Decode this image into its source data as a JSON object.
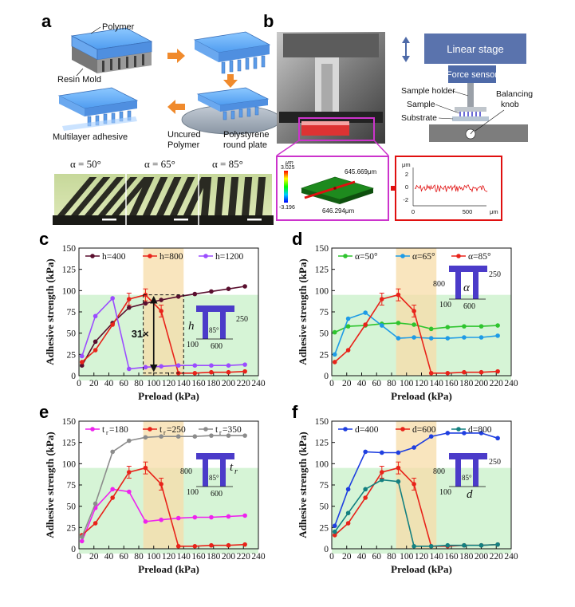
{
  "panel_a": {
    "label": "a",
    "labels": {
      "polymer": "Polymer",
      "resin_mold": "Resin Mold",
      "multilayer_adhesive": "Multilayer adhesive",
      "uncured_polymer_1": "Uncured",
      "uncured_polymer_2": "Polymer",
      "polystyrene_1": "Polystyrene",
      "polystyrene_2": "round plate"
    },
    "micrographs": [
      "α = 50°",
      "α = 65°",
      "α = 85°"
    ]
  },
  "panel_b": {
    "label": "b",
    "schematic": {
      "linear_stage": "Linear stage",
      "force_sensor": "Force sensor",
      "sample_holder": "Sample holder",
      "sample": "Sample",
      "substrate": "Substrate",
      "balancing_1": "Balancing",
      "balancing_2": "knob"
    },
    "surface_map": {
      "unit": "μm",
      "max": "3.025",
      "min": "-3.196",
      "width": "645.669μm",
      "length": "646.294μm"
    },
    "profile": {
      "unit": "μm",
      "yticks": [
        "2",
        "0",
        "-2"
      ],
      "xticks": [
        "0",
        "500"
      ],
      "xunit": "μm"
    }
  },
  "panels": [
    {
      "label": "c",
      "legend": [
        "h=400",
        "h=800",
        "h=1200"
      ],
      "fold_label": "31×",
      "inset": {
        "var": "h",
        "angle": "85°",
        "dim_top": "250",
        "dim_left": "100",
        "dim_bottom": "600"
      }
    },
    {
      "label": "d",
      "legend": [
        "α=50°",
        "α=65°",
        "α=85°"
      ],
      "inset": {
        "var": "α",
        "dim_top": "250",
        "dim_side": "800",
        "dim_left": "100",
        "dim_bottom": "600"
      }
    },
    {
      "label": "e",
      "legend": [
        "t",
        "t",
        "t"
      ],
      "legend_sub": [
        "r",
        "r",
        "r"
      ],
      "legend_val": [
        "=180",
        "=250",
        "=350"
      ],
      "inset": {
        "var": "t",
        "var_sub": "r",
        "angle": "85°",
        "dim_side": "800",
        "dim_left": "100",
        "dim_bottom": "600"
      }
    },
    {
      "label": "f",
      "legend": [
        "d=400",
        "d=600",
        "d=800"
      ],
      "inset": {
        "var": "d",
        "angle": "85°",
        "dim_top": "250",
        "dim_side": "800",
        "dim_left": "100"
      }
    }
  ],
  "chart_data": [
    {
      "type": "line",
      "panel": "c",
      "xlabel": "Preload (kPa)",
      "ylabel": "Adhesive strength (kPa)",
      "xlim": [
        0,
        240
      ],
      "ylim": [
        0,
        150
      ],
      "xticks": [
        0,
        20,
        40,
        60,
        80,
        100,
        120,
        140,
        160,
        180,
        200,
        220,
        240
      ],
      "yticks": [
        0,
        25,
        50,
        75,
        100,
        125,
        150
      ],
      "series": [
        {
          "name": "h=400",
          "color": "#5a0f2e",
          "x": [
            4,
            22,
            45,
            67,
            89,
            110,
            133,
            155,
            177,
            200,
            222
          ],
          "y": [
            12,
            40,
            62,
            80,
            85,
            89,
            93,
            96,
            99,
            102,
            105
          ]
        },
        {
          "name": "h=800",
          "color": "#e8231a",
          "x": [
            4,
            22,
            45,
            67,
            89,
            110,
            133,
            155,
            177,
            200,
            222
          ],
          "y": [
            16,
            30,
            60,
            90,
            95,
            76,
            3,
            3,
            4,
            4,
            5
          ]
        },
        {
          "name": "h=1200",
          "color": "#9b4dff",
          "x": [
            4,
            22,
            45,
            67,
            89,
            110,
            133,
            155,
            177,
            200,
            222
          ],
          "y": [
            23,
            70,
            91,
            8,
            10,
            11,
            12,
            12,
            12,
            12,
            13
          ]
        }
      ]
    },
    {
      "type": "line",
      "panel": "d",
      "xlabel": "Preload (kPa)",
      "ylabel": "Adhesive strength (kPa)",
      "xlim": [
        0,
        240
      ],
      "ylim": [
        0,
        150
      ],
      "xticks": [
        0,
        20,
        40,
        60,
        80,
        100,
        120,
        140,
        160,
        180,
        200,
        220,
        240
      ],
      "yticks": [
        0,
        25,
        50,
        75,
        100,
        125,
        150
      ],
      "series": [
        {
          "name": "α=50°",
          "color": "#2ec42e",
          "x": [
            4,
            22,
            45,
            67,
            89,
            110,
            133,
            155,
            177,
            200,
            222
          ],
          "y": [
            51,
            58,
            59,
            61,
            62,
            60,
            55,
            57,
            58,
            58,
            59
          ]
        },
        {
          "name": "α=65°",
          "color": "#1e9be6",
          "x": [
            4,
            22,
            45,
            67,
            89,
            110,
            133,
            155,
            177,
            200,
            222
          ],
          "y": [
            25,
            67,
            74,
            59,
            44,
            45,
            44,
            44,
            45,
            45,
            47
          ]
        },
        {
          "name": "α=85°",
          "color": "#e8231a",
          "x": [
            4,
            22,
            45,
            67,
            89,
            110,
            133,
            155,
            177,
            200,
            222
          ],
          "y": [
            16,
            30,
            60,
            90,
            95,
            76,
            3,
            3,
            4,
            4,
            5
          ]
        }
      ]
    },
    {
      "type": "line",
      "panel": "e",
      "xlabel": "Preload (kPa)",
      "ylabel": "Adhesive strength (kPa)",
      "xlim": [
        0,
        240
      ],
      "ylim": [
        0,
        150
      ],
      "xticks": [
        0,
        20,
        40,
        60,
        80,
        100,
        120,
        140,
        160,
        180,
        200,
        220,
        240
      ],
      "yticks": [
        0,
        25,
        50,
        75,
        100,
        125,
        150
      ],
      "series": [
        {
          "name": "tr=180",
          "color": "#ee22ee",
          "x": [
            4,
            22,
            45,
            67,
            89,
            110,
            133,
            155,
            177,
            200,
            222
          ],
          "y": [
            9,
            48,
            70,
            67,
            32,
            34,
            36,
            37,
            37,
            38,
            39
          ]
        },
        {
          "name": "tr=250",
          "color": "#e8231a",
          "x": [
            4,
            22,
            45,
            67,
            89,
            110,
            133,
            155,
            177,
            200,
            222
          ],
          "y": [
            16,
            30,
            60,
            90,
            95,
            76,
            3,
            3,
            4,
            4,
            5
          ]
        },
        {
          "name": "tr=350",
          "color": "#8c8c8c",
          "x": [
            4,
            22,
            45,
            67,
            89,
            110,
            133,
            155,
            177,
            200,
            222
          ],
          "y": [
            14,
            53,
            114,
            127,
            131,
            132,
            132,
            132,
            133,
            133,
            133
          ]
        }
      ]
    },
    {
      "type": "line",
      "panel": "f",
      "xlabel": "Preload (kPa)",
      "ylabel": "Adhesive strength (kPa)",
      "xlim": [
        0,
        240
      ],
      "ylim": [
        0,
        150
      ],
      "xticks": [
        0,
        20,
        40,
        60,
        80,
        100,
        120,
        140,
        160,
        180,
        200,
        220,
        240
      ],
      "yticks": [
        0,
        25,
        50,
        75,
        100,
        125,
        150
      ],
      "series": [
        {
          "name": "d=400",
          "color": "#1f3fe0",
          "x": [
            4,
            22,
            45,
            67,
            89,
            110,
            133,
            155,
            177,
            200,
            222
          ],
          "y": [
            27,
            70,
            114,
            113,
            113,
            119,
            132,
            136,
            136,
            136,
            130
          ]
        },
        {
          "name": "d=600",
          "color": "#e8231a",
          "x": [
            4,
            22,
            45,
            67,
            89,
            110,
            133,
            155,
            177,
            200,
            222
          ],
          "y": [
            16,
            30,
            60,
            90,
            95,
            76,
            3,
            3,
            4,
            4,
            5
          ]
        },
        {
          "name": "d=800",
          "color": "#138080",
          "x": [
            4,
            22,
            45,
            67,
            89,
            110,
            133,
            155,
            177,
            200,
            222
          ],
          "y": [
            20,
            42,
            70,
            81,
            79,
            3,
            3,
            4,
            4,
            4,
            5
          ]
        }
      ]
    }
  ]
}
